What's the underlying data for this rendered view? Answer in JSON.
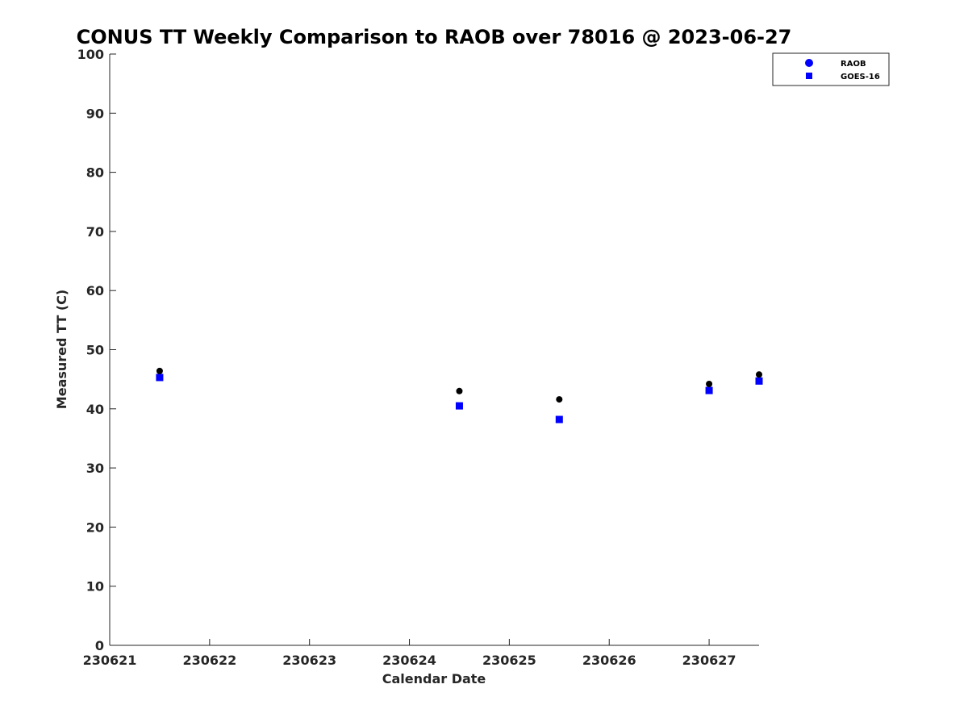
{
  "chart_data": {
    "type": "scatter",
    "title": "CONUS TT Weekly Comparison to RAOB over 78016 @ 2023-06-27",
    "xlabel": "Calendar Date",
    "ylabel": "Measured TT (C)",
    "xlim": [
      230621,
      230627.5
    ],
    "ylim": [
      0,
      100
    ],
    "x_ticks": [
      230621,
      230622,
      230623,
      230624,
      230625,
      230626,
      230627
    ],
    "x_tick_labels": [
      "230621",
      "230622",
      "230623",
      "230624",
      "230625",
      "230626",
      "230627"
    ],
    "y_ticks": [
      0,
      10,
      20,
      30,
      40,
      50,
      60,
      70,
      80,
      90,
      100
    ],
    "y_tick_labels": [
      "0",
      "10",
      "20",
      "30",
      "40",
      "50",
      "60",
      "70",
      "80",
      "90",
      "100"
    ],
    "grid": false,
    "legend_position": "top-right, outside plot",
    "series": [
      {
        "name": "RAOB",
        "marker": "circle",
        "legend_color": "#0000ff",
        "point_color": "#000000",
        "x": [
          230621.5,
          230624.5,
          230625.5,
          230627.0,
          230627.5
        ],
        "y": [
          46.4,
          43.0,
          41.6,
          44.2,
          45.8
        ]
      },
      {
        "name": "GOES-16",
        "marker": "square",
        "legend_color": "#0000ff",
        "point_color": "#0000ff",
        "x": [
          230621.5,
          230624.5,
          230625.5,
          230627.0,
          230627.5
        ],
        "y": [
          45.3,
          40.5,
          38.2,
          43.1,
          44.7
        ]
      }
    ]
  }
}
